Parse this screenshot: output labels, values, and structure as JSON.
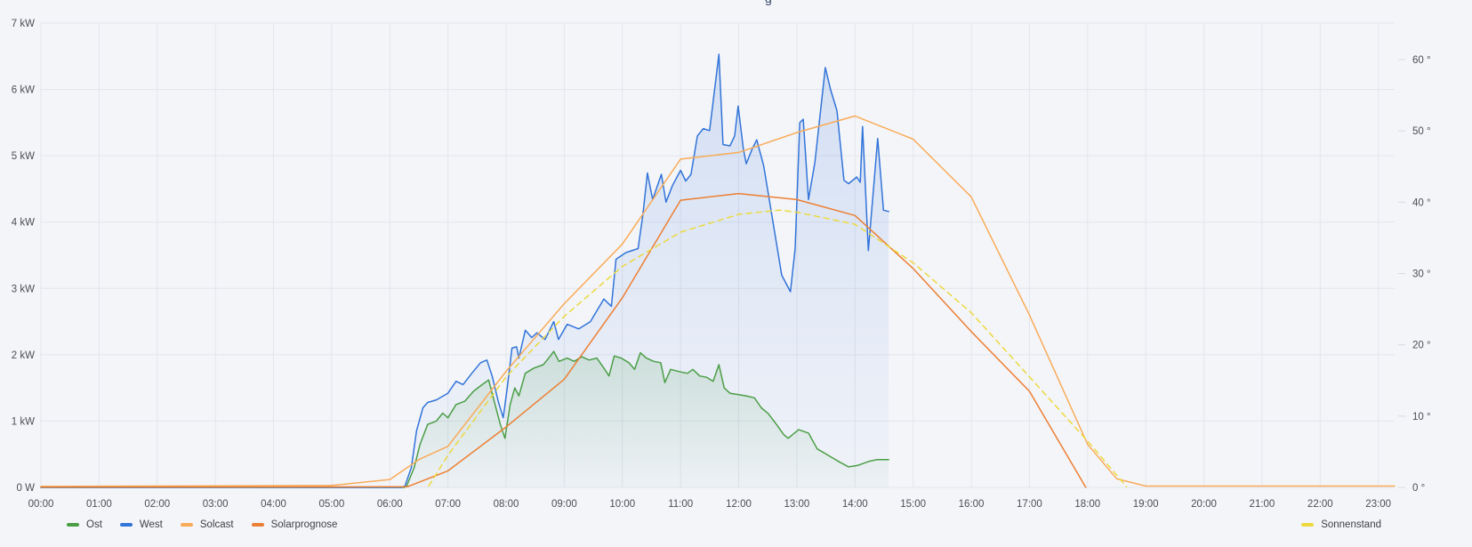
{
  "title_fragment": "g",
  "legend": {
    "left_items": [
      "Ost",
      "West",
      "Solcast",
      "Solarprognose"
    ],
    "right_items": [
      "Sonnenstand"
    ]
  },
  "axes": {
    "y_left_ticks": [
      "7 kW",
      "6 kW",
      "5 kW",
      "4 kW",
      "3 kW",
      "2 kW",
      "1 kW",
      "0 W"
    ],
    "y_right_ticks": [
      "60 °",
      "50 °",
      "40 °",
      "30 °",
      "20 °",
      "10 °",
      "0 °"
    ],
    "x_ticks": [
      "00:00",
      "01:00",
      "02:00",
      "03:00",
      "04:00",
      "05:00",
      "06:00",
      "07:00",
      "08:00",
      "09:00",
      "10:00",
      "11:00",
      "12:00",
      "13:00",
      "14:00",
      "15:00",
      "16:00",
      "17:00",
      "18:00",
      "19:00",
      "20:00",
      "21:00",
      "22:00",
      "23:00"
    ]
  },
  "colors": {
    "background": "#f4f5f9",
    "grid": "#e2e5eb",
    "axis_text": "#4c4e55",
    "ost": "#4b9e46",
    "west": "#3274d9",
    "solcast": "#f9ab58",
    "solarprognose": "#ec7f33",
    "sonnenstand": "#ecd93e"
  },
  "chart_data": {
    "type": "line",
    "x_unit": "hours",
    "x_range": [
      0,
      23.28
    ],
    "y_left": {
      "label": "kW",
      "range": [
        0,
        7
      ]
    },
    "y_right": {
      "label": "deg",
      "range": [
        0,
        60
      ]
    },
    "grid": true,
    "legend_position": "bottom",
    "series": [
      {
        "name": "Ost",
        "axis": "left",
        "color": "#4b9e46",
        "fill": true,
        "dash": null,
        "points": [
          [
            0,
            0
          ],
          [
            6.25,
            0
          ],
          [
            6.29,
            0.02
          ],
          [
            6.42,
            0.3
          ],
          [
            6.52,
            0.65
          ],
          [
            6.65,
            0.95
          ],
          [
            6.8,
            1.0
          ],
          [
            6.91,
            1.12
          ],
          [
            7.0,
            1.05
          ],
          [
            7.14,
            1.25
          ],
          [
            7.29,
            1.3
          ],
          [
            7.44,
            1.45
          ],
          [
            7.59,
            1.55
          ],
          [
            7.7,
            1.62
          ],
          [
            7.81,
            1.25
          ],
          [
            7.9,
            0.95
          ],
          [
            7.98,
            0.74
          ],
          [
            8.07,
            1.25
          ],
          [
            8.15,
            1.5
          ],
          [
            8.22,
            1.38
          ],
          [
            8.33,
            1.72
          ],
          [
            8.48,
            1.8
          ],
          [
            8.64,
            1.85
          ],
          [
            8.76,
            1.98
          ],
          [
            8.82,
            2.05
          ],
          [
            8.91,
            1.9
          ],
          [
            9.05,
            1.95
          ],
          [
            9.17,
            1.9
          ],
          [
            9.3,
            1.97
          ],
          [
            9.43,
            1.92
          ],
          [
            9.56,
            1.95
          ],
          [
            9.68,
            1.8
          ],
          [
            9.77,
            1.68
          ],
          [
            9.86,
            1.98
          ],
          [
            9.98,
            1.95
          ],
          [
            10.11,
            1.88
          ],
          [
            10.21,
            1.78
          ],
          [
            10.31,
            2.03
          ],
          [
            10.41,
            1.95
          ],
          [
            10.54,
            1.9
          ],
          [
            10.66,
            1.88
          ],
          [
            10.73,
            1.58
          ],
          [
            10.83,
            1.78
          ],
          [
            11.0,
            1.74
          ],
          [
            11.12,
            1.72
          ],
          [
            11.21,
            1.78
          ],
          [
            11.33,
            1.68
          ],
          [
            11.45,
            1.66
          ],
          [
            11.56,
            1.6
          ],
          [
            11.66,
            1.85
          ],
          [
            11.75,
            1.5
          ],
          [
            11.85,
            1.42
          ],
          [
            11.99,
            1.4
          ],
          [
            12.13,
            1.38
          ],
          [
            12.27,
            1.35
          ],
          [
            12.39,
            1.2
          ],
          [
            12.51,
            1.11
          ],
          [
            12.65,
            0.95
          ],
          [
            12.77,
            0.8
          ],
          [
            12.85,
            0.74
          ],
          [
            13.03,
            0.87
          ],
          [
            13.2,
            0.82
          ],
          [
            13.35,
            0.58
          ],
          [
            13.49,
            0.51
          ],
          [
            13.74,
            0.38
          ],
          [
            13.89,
            0.31
          ],
          [
            14.04,
            0.33
          ],
          [
            14.23,
            0.39
          ],
          [
            14.38,
            0.42
          ],
          [
            14.58,
            0.42
          ]
        ]
      },
      {
        "name": "West",
        "axis": "left",
        "color": "#3274d9",
        "fill": true,
        "dash": null,
        "points": [
          [
            0,
            0
          ],
          [
            6.2,
            0
          ],
          [
            6.26,
            0.02
          ],
          [
            6.37,
            0.3
          ],
          [
            6.46,
            0.85
          ],
          [
            6.57,
            1.2
          ],
          [
            6.65,
            1.28
          ],
          [
            6.8,
            1.32
          ],
          [
            7.0,
            1.42
          ],
          [
            7.14,
            1.6
          ],
          [
            7.26,
            1.55
          ],
          [
            7.41,
            1.72
          ],
          [
            7.56,
            1.88
          ],
          [
            7.67,
            1.92
          ],
          [
            7.76,
            1.68
          ],
          [
            7.87,
            1.28
          ],
          [
            7.95,
            1.05
          ],
          [
            8.02,
            1.5
          ],
          [
            8.1,
            2.1
          ],
          [
            8.18,
            2.12
          ],
          [
            8.22,
            1.95
          ],
          [
            8.33,
            2.37
          ],
          [
            8.44,
            2.26
          ],
          [
            8.53,
            2.33
          ],
          [
            8.67,
            2.23
          ],
          [
            8.82,
            2.5
          ],
          [
            8.9,
            2.23
          ],
          [
            9.05,
            2.46
          ],
          [
            9.25,
            2.39
          ],
          [
            9.45,
            2.5
          ],
          [
            9.68,
            2.84
          ],
          [
            9.81,
            2.73
          ],
          [
            9.89,
            3.44
          ],
          [
            10.06,
            3.54
          ],
          [
            10.27,
            3.6
          ],
          [
            10.35,
            4.1
          ],
          [
            10.43,
            4.74
          ],
          [
            10.52,
            4.34
          ],
          [
            10.67,
            4.72
          ],
          [
            10.75,
            4.3
          ],
          [
            10.86,
            4.55
          ],
          [
            11.0,
            4.78
          ],
          [
            11.09,
            4.62
          ],
          [
            11.18,
            4.72
          ],
          [
            11.29,
            5.3
          ],
          [
            11.39,
            5.41
          ],
          [
            11.5,
            5.38
          ],
          [
            11.66,
            6.53
          ],
          [
            11.73,
            5.17
          ],
          [
            11.85,
            5.15
          ],
          [
            11.93,
            5.3
          ],
          [
            11.99,
            5.75
          ],
          [
            12.08,
            5.1
          ],
          [
            12.13,
            4.88
          ],
          [
            12.23,
            5.1
          ],
          [
            12.31,
            5.24
          ],
          [
            12.43,
            4.85
          ],
          [
            12.59,
            4.0
          ],
          [
            12.74,
            3.2
          ],
          [
            12.89,
            2.95
          ],
          [
            12.97,
            3.6
          ],
          [
            13.05,
            5.5
          ],
          [
            13.11,
            5.55
          ],
          [
            13.2,
            4.34
          ],
          [
            13.31,
            4.9
          ],
          [
            13.49,
            6.33
          ],
          [
            13.58,
            6.0
          ],
          [
            13.69,
            5.68
          ],
          [
            13.81,
            4.63
          ],
          [
            13.89,
            4.58
          ],
          [
            14.03,
            4.68
          ],
          [
            14.09,
            4.6
          ],
          [
            14.13,
            5.44
          ],
          [
            14.23,
            3.57
          ],
          [
            14.39,
            5.26
          ],
          [
            14.49,
            4.18
          ],
          [
            14.58,
            4.16
          ]
        ]
      },
      {
        "name": "Solcast",
        "axis": "left",
        "color": "#f9ab58",
        "fill": false,
        "dash": null,
        "points": [
          [
            0,
            0.015
          ],
          [
            5,
            0.03
          ],
          [
            6,
            0.12
          ],
          [
            6.5,
            0.42
          ],
          [
            7,
            0.62
          ],
          [
            8,
            1.75
          ],
          [
            9,
            2.77
          ],
          [
            10,
            3.67
          ],
          [
            11,
            4.95
          ],
          [
            12,
            5.05
          ],
          [
            13,
            5.35
          ],
          [
            14,
            5.6
          ],
          [
            15,
            5.25
          ],
          [
            16,
            4.38
          ],
          [
            17,
            2.6
          ],
          [
            18,
            0.65
          ],
          [
            18.5,
            0.13
          ],
          [
            19,
            0.02
          ],
          [
            23.28,
            0.02
          ]
        ]
      },
      {
        "name": "Solarprognose",
        "axis": "left",
        "color": "#ec7f33",
        "fill": false,
        "dash": null,
        "points": [
          [
            0,
            0.005
          ],
          [
            6.3,
            0.01
          ],
          [
            7,
            0.25
          ],
          [
            8,
            0.91
          ],
          [
            9,
            1.63
          ],
          [
            10,
            2.86
          ],
          [
            11,
            4.33
          ],
          [
            12,
            4.43
          ],
          [
            13,
            4.34
          ],
          [
            14,
            4.1
          ],
          [
            15,
            3.3
          ],
          [
            16,
            2.35
          ],
          [
            17,
            1.45
          ],
          [
            17.97,
            0
          ]
        ]
      },
      {
        "name": "Sonnenstand",
        "axis": "right",
        "color": "#ecd93e",
        "fill": false,
        "dash": "6 5",
        "points": [
          [
            6.67,
            0.2
          ],
          [
            7,
            4.5
          ],
          [
            8,
            15.5
          ],
          [
            9,
            24
          ],
          [
            10,
            31
          ],
          [
            11,
            35.8
          ],
          [
            12,
            38.3
          ],
          [
            12.7,
            38.9
          ],
          [
            13,
            38.6
          ],
          [
            14,
            36.9
          ],
          [
            15,
            31.5
          ],
          [
            16,
            24.5
          ],
          [
            17,
            15.5
          ],
          [
            18,
            6.5
          ],
          [
            18.67,
            0.1
          ]
        ]
      }
    ]
  }
}
